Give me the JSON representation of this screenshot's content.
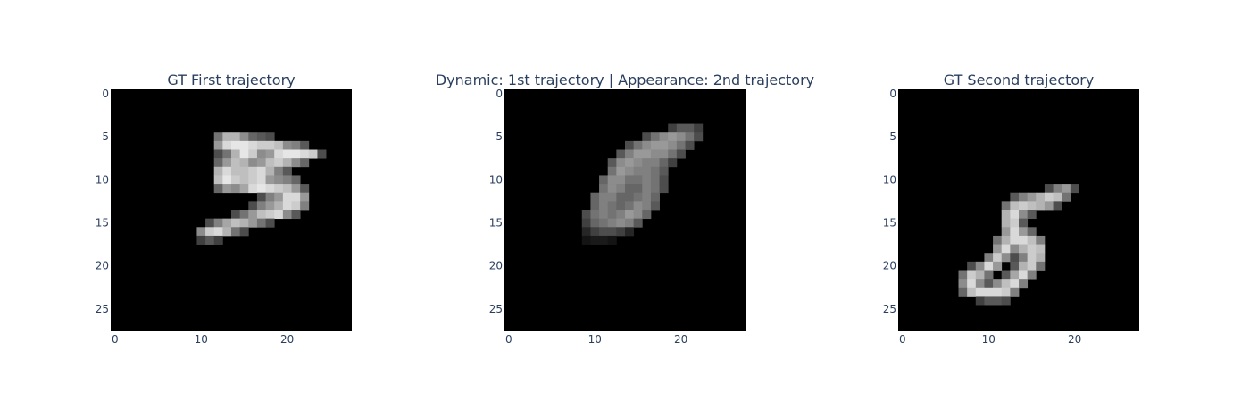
{
  "chart_data": [
    {
      "type": "heatmap",
      "title": "GT First trajectory",
      "colormap": "gray",
      "background": "#000000",
      "xlim": [
        -0.5,
        27.5
      ],
      "ylim": [
        27.5,
        -0.5
      ],
      "x_ticks": [
        0,
        10,
        20
      ],
      "y_ticks": [
        0,
        5,
        10,
        15,
        20,
        25
      ],
      "grid_size": [
        28,
        28
      ],
      "cells": [
        [
          5,
          12,
          0.45
        ],
        [
          5,
          13,
          0.7
        ],
        [
          5,
          14,
          0.7
        ],
        [
          5,
          15,
          0.55
        ],
        [
          5,
          16,
          0.4
        ],
        [
          5,
          17,
          0.35
        ],
        [
          5,
          18,
          0.3
        ],
        [
          6,
          12,
          0.6
        ],
        [
          6,
          13,
          0.85
        ],
        [
          6,
          14,
          0.9
        ],
        [
          6,
          15,
          0.9
        ],
        [
          6,
          16,
          0.85
        ],
        [
          6,
          17,
          0.8
        ],
        [
          6,
          18,
          0.8
        ],
        [
          6,
          19,
          0.75
        ],
        [
          6,
          20,
          0.55
        ],
        [
          6,
          21,
          0.5
        ],
        [
          6,
          22,
          0.35
        ],
        [
          7,
          12,
          0.3
        ],
        [
          7,
          13,
          0.45
        ],
        [
          7,
          14,
          0.7
        ],
        [
          7,
          15,
          0.9
        ],
        [
          7,
          16,
          0.8
        ],
        [
          7,
          17,
          0.55
        ],
        [
          7,
          18,
          0.6
        ],
        [
          7,
          19,
          0.85
        ],
        [
          7,
          20,
          0.9
        ],
        [
          7,
          21,
          0.9
        ],
        [
          7,
          22,
          0.85
        ],
        [
          7,
          23,
          0.8
        ],
        [
          7,
          24,
          0.3
        ],
        [
          8,
          12,
          0.4
        ],
        [
          8,
          13,
          0.6
        ],
        [
          8,
          14,
          0.75
        ],
        [
          8,
          15,
          0.7
        ],
        [
          8,
          16,
          0.55
        ],
        [
          8,
          17,
          0.6
        ],
        [
          8,
          18,
          0.75
        ],
        [
          8,
          19,
          0.8
        ],
        [
          8,
          20,
          0.7
        ],
        [
          8,
          21,
          0.55
        ],
        [
          8,
          22,
          0.4
        ],
        [
          9,
          12,
          0.7
        ],
        [
          9,
          13,
          0.85
        ],
        [
          9,
          14,
          0.75
        ],
        [
          9,
          15,
          0.75
        ],
        [
          9,
          16,
          0.8
        ],
        [
          9,
          17,
          0.85
        ],
        [
          9,
          18,
          0.7
        ],
        [
          9,
          19,
          0.5
        ],
        [
          9,
          20,
          0.35
        ],
        [
          10,
          12,
          0.75
        ],
        [
          10,
          13,
          0.9
        ],
        [
          10,
          14,
          0.8
        ],
        [
          10,
          15,
          0.75
        ],
        [
          10,
          16,
          0.8
        ],
        [
          10,
          17,
          0.85
        ],
        [
          10,
          18,
          0.6
        ],
        [
          10,
          19,
          0.55
        ],
        [
          10,
          20,
          0.5
        ],
        [
          10,
          21,
          0.4
        ],
        [
          11,
          12,
          0.4
        ],
        [
          11,
          13,
          0.6
        ],
        [
          11,
          14,
          0.55
        ],
        [
          11,
          15,
          0.65
        ],
        [
          11,
          16,
          0.85
        ],
        [
          11,
          17,
          0.9
        ],
        [
          11,
          18,
          0.85
        ],
        [
          11,
          19,
          0.8
        ],
        [
          11,
          20,
          0.75
        ],
        [
          11,
          21,
          0.6
        ],
        [
          11,
          22,
          0.35
        ],
        [
          12,
          17,
          0.3
        ],
        [
          12,
          18,
          0.5
        ],
        [
          12,
          19,
          0.6
        ],
        [
          12,
          20,
          0.85
        ],
        [
          12,
          21,
          0.85
        ],
        [
          12,
          22,
          0.6
        ],
        [
          13,
          16,
          0.3
        ],
        [
          13,
          17,
          0.5
        ],
        [
          13,
          18,
          0.6
        ],
        [
          13,
          19,
          0.7
        ],
        [
          13,
          20,
          0.85
        ],
        [
          13,
          21,
          0.8
        ],
        [
          13,
          22,
          0.5
        ],
        [
          14,
          14,
          0.3
        ],
        [
          14,
          15,
          0.45
        ],
        [
          14,
          16,
          0.6
        ],
        [
          14,
          17,
          0.75
        ],
        [
          14,
          18,
          0.8
        ],
        [
          14,
          19,
          0.85
        ],
        [
          14,
          20,
          0.55
        ],
        [
          14,
          21,
          0.35
        ],
        [
          15,
          11,
          0.3
        ],
        [
          15,
          12,
          0.5
        ],
        [
          15,
          13,
          0.65
        ],
        [
          15,
          14,
          0.75
        ],
        [
          15,
          15,
          0.7
        ],
        [
          15,
          16,
          0.6
        ],
        [
          15,
          17,
          0.45
        ],
        [
          15,
          18,
          0.3
        ],
        [
          16,
          10,
          0.55
        ],
        [
          16,
          11,
          0.8
        ],
        [
          16,
          12,
          0.85
        ],
        [
          16,
          13,
          0.7
        ],
        [
          16,
          14,
          0.45
        ],
        [
          16,
          15,
          0.3
        ],
        [
          17,
          10,
          0.25
        ],
        [
          17,
          11,
          0.35
        ],
        [
          17,
          12,
          0.25
        ]
      ]
    },
    {
      "type": "heatmap",
      "title": "Dynamic: 1st trajectory | Appearance: 2nd trajectory",
      "colormap": "gray",
      "background": "#000000",
      "xlim": [
        -0.5,
        27.5
      ],
      "ylim": [
        27.5,
        -0.5
      ],
      "x_ticks": [
        0,
        10,
        20
      ],
      "y_ticks": [
        0,
        5,
        10,
        15,
        20,
        25
      ],
      "grid_size": [
        28,
        28
      ],
      "cells": [
        [
          4,
          19,
          0.25
        ],
        [
          4,
          20,
          0.35
        ],
        [
          4,
          21,
          0.35
        ],
        [
          4,
          22,
          0.25
        ],
        [
          5,
          16,
          0.3
        ],
        [
          5,
          17,
          0.45
        ],
        [
          5,
          18,
          0.55
        ],
        [
          5,
          19,
          0.6
        ],
        [
          5,
          20,
          0.55
        ],
        [
          5,
          21,
          0.45
        ],
        [
          5,
          22,
          0.3
        ],
        [
          6,
          14,
          0.3
        ],
        [
          6,
          15,
          0.45
        ],
        [
          6,
          16,
          0.55
        ],
        [
          6,
          17,
          0.6
        ],
        [
          6,
          18,
          0.6
        ],
        [
          6,
          19,
          0.55
        ],
        [
          6,
          20,
          0.45
        ],
        [
          6,
          21,
          0.3
        ],
        [
          7,
          13,
          0.35
        ],
        [
          7,
          14,
          0.5
        ],
        [
          7,
          15,
          0.6
        ],
        [
          7,
          16,
          0.6
        ],
        [
          7,
          17,
          0.55
        ],
        [
          7,
          18,
          0.55
        ],
        [
          7,
          19,
          0.45
        ],
        [
          7,
          20,
          0.3
        ],
        [
          8,
          12,
          0.35
        ],
        [
          8,
          13,
          0.55
        ],
        [
          8,
          14,
          0.6
        ],
        [
          8,
          15,
          0.55
        ],
        [
          8,
          16,
          0.5
        ],
        [
          8,
          17,
          0.5
        ],
        [
          8,
          18,
          0.4
        ],
        [
          8,
          19,
          0.25
        ],
        [
          9,
          12,
          0.45
        ],
        [
          9,
          13,
          0.6
        ],
        [
          9,
          14,
          0.55
        ],
        [
          9,
          15,
          0.5
        ],
        [
          9,
          16,
          0.5
        ],
        [
          9,
          17,
          0.45
        ],
        [
          9,
          18,
          0.35
        ],
        [
          10,
          11,
          0.4
        ],
        [
          10,
          12,
          0.55
        ],
        [
          10,
          13,
          0.55
        ],
        [
          10,
          14,
          0.45
        ],
        [
          10,
          15,
          0.45
        ],
        [
          10,
          16,
          0.5
        ],
        [
          10,
          17,
          0.45
        ],
        [
          10,
          18,
          0.3
        ],
        [
          11,
          11,
          0.45
        ],
        [
          11,
          12,
          0.55
        ],
        [
          11,
          13,
          0.5
        ],
        [
          11,
          14,
          0.4
        ],
        [
          11,
          15,
          0.4
        ],
        [
          11,
          16,
          0.5
        ],
        [
          11,
          17,
          0.45
        ],
        [
          11,
          18,
          0.3
        ],
        [
          12,
          10,
          0.4
        ],
        [
          12,
          11,
          0.5
        ],
        [
          12,
          12,
          0.5
        ],
        [
          12,
          13,
          0.4
        ],
        [
          12,
          14,
          0.4
        ],
        [
          12,
          15,
          0.45
        ],
        [
          12,
          16,
          0.5
        ],
        [
          12,
          17,
          0.4
        ],
        [
          13,
          10,
          0.4
        ],
        [
          13,
          11,
          0.5
        ],
        [
          13,
          12,
          0.45
        ],
        [
          13,
          13,
          0.4
        ],
        [
          13,
          14,
          0.45
        ],
        [
          13,
          15,
          0.55
        ],
        [
          13,
          16,
          0.5
        ],
        [
          13,
          17,
          0.35
        ],
        [
          14,
          9,
          0.3
        ],
        [
          14,
          10,
          0.45
        ],
        [
          14,
          11,
          0.5
        ],
        [
          14,
          12,
          0.45
        ],
        [
          14,
          13,
          0.5
        ],
        [
          14,
          14,
          0.6
        ],
        [
          14,
          15,
          0.55
        ],
        [
          14,
          16,
          0.4
        ],
        [
          15,
          9,
          0.25
        ],
        [
          15,
          10,
          0.4
        ],
        [
          15,
          11,
          0.45
        ],
        [
          15,
          12,
          0.5
        ],
        [
          15,
          13,
          0.55
        ],
        [
          15,
          14,
          0.5
        ],
        [
          15,
          15,
          0.35
        ],
        [
          16,
          9,
          0.15
        ],
        [
          16,
          10,
          0.25
        ],
        [
          16,
          11,
          0.3
        ],
        [
          16,
          12,
          0.3
        ],
        [
          16,
          13,
          0.25
        ],
        [
          16,
          14,
          0.15
        ],
        [
          17,
          9,
          0.08
        ],
        [
          17,
          10,
          0.1
        ],
        [
          17,
          11,
          0.1
        ],
        [
          17,
          12,
          0.08
        ]
      ]
    },
    {
      "type": "heatmap",
      "title": "GT Second trajectory",
      "colormap": "gray",
      "background": "#000000",
      "xlim": [
        -0.5,
        27.5
      ],
      "ylim": [
        27.5,
        -0.5
      ],
      "x_ticks": [
        0,
        10,
        20
      ],
      "y_ticks": [
        0,
        5,
        10,
        15,
        20,
        25
      ],
      "grid_size": [
        28,
        28
      ],
      "cells": [
        [
          11,
          17,
          0.3
        ],
        [
          11,
          18,
          0.5
        ],
        [
          11,
          19,
          0.6
        ],
        [
          11,
          20,
          0.3
        ],
        [
          12,
          13,
          0.35
        ],
        [
          12,
          14,
          0.5
        ],
        [
          12,
          15,
          0.6
        ],
        [
          12,
          16,
          0.7
        ],
        [
          12,
          17,
          0.8
        ],
        [
          12,
          18,
          0.75
        ],
        [
          12,
          19,
          0.45
        ],
        [
          13,
          12,
          0.45
        ],
        [
          13,
          13,
          0.75
        ],
        [
          13,
          14,
          0.8
        ],
        [
          13,
          15,
          0.75
        ],
        [
          13,
          16,
          0.7
        ],
        [
          13,
          17,
          0.6
        ],
        [
          13,
          18,
          0.3
        ],
        [
          14,
          12,
          0.7
        ],
        [
          14,
          13,
          0.85
        ],
        [
          14,
          14,
          0.55
        ],
        [
          14,
          15,
          0.35
        ],
        [
          15,
          12,
          0.7
        ],
        [
          15,
          13,
          0.8
        ],
        [
          15,
          14,
          0.35
        ],
        [
          16,
          12,
          0.6
        ],
        [
          16,
          13,
          0.85
        ],
        [
          16,
          14,
          0.6
        ],
        [
          16,
          15,
          0.4
        ],
        [
          17,
          11,
          0.45
        ],
        [
          17,
          12,
          0.7
        ],
        [
          17,
          13,
          0.85
        ],
        [
          17,
          14,
          0.85
        ],
        [
          17,
          15,
          0.75
        ],
        [
          17,
          16,
          0.5
        ],
        [
          18,
          11,
          0.6
        ],
        [
          18,
          12,
          0.85
        ],
        [
          18,
          13,
          0.55
        ],
        [
          18,
          14,
          0.7
        ],
        [
          18,
          15,
          0.8
        ],
        [
          18,
          16,
          0.75
        ],
        [
          19,
          10,
          0.5
        ],
        [
          19,
          11,
          0.8
        ],
        [
          19,
          12,
          0.55
        ],
        [
          19,
          13,
          0.3
        ],
        [
          19,
          14,
          0.5
        ],
        [
          19,
          15,
          0.8
        ],
        [
          19,
          16,
          0.7
        ],
        [
          20,
          8,
          0.3
        ],
        [
          20,
          9,
          0.55
        ],
        [
          20,
          10,
          0.85
        ],
        [
          20,
          11,
          0.6
        ],
        [
          20,
          13,
          0.35
        ],
        [
          20,
          14,
          0.7
        ],
        [
          20,
          15,
          0.8
        ],
        [
          20,
          16,
          0.45
        ],
        [
          21,
          7,
          0.45
        ],
        [
          21,
          8,
          0.8
        ],
        [
          21,
          9,
          0.7
        ],
        [
          21,
          10,
          0.45
        ],
        [
          21,
          12,
          0.35
        ],
        [
          21,
          13,
          0.65
        ],
        [
          21,
          14,
          0.85
        ],
        [
          21,
          15,
          0.5
        ],
        [
          22,
          7,
          0.55
        ],
        [
          22,
          8,
          0.85
        ],
        [
          22,
          9,
          0.55
        ],
        [
          22,
          10,
          0.35
        ],
        [
          22,
          11,
          0.55
        ],
        [
          22,
          12,
          0.75
        ],
        [
          22,
          13,
          0.85
        ],
        [
          22,
          14,
          0.5
        ],
        [
          23,
          7,
          0.4
        ],
        [
          23,
          8,
          0.75
        ],
        [
          23,
          9,
          0.85
        ],
        [
          23,
          10,
          0.85
        ],
        [
          23,
          11,
          0.85
        ],
        [
          23,
          12,
          0.8
        ],
        [
          23,
          13,
          0.5
        ],
        [
          24,
          9,
          0.25
        ],
        [
          24,
          10,
          0.35
        ],
        [
          24,
          11,
          0.35
        ],
        [
          24,
          12,
          0.3
        ]
      ]
    }
  ]
}
